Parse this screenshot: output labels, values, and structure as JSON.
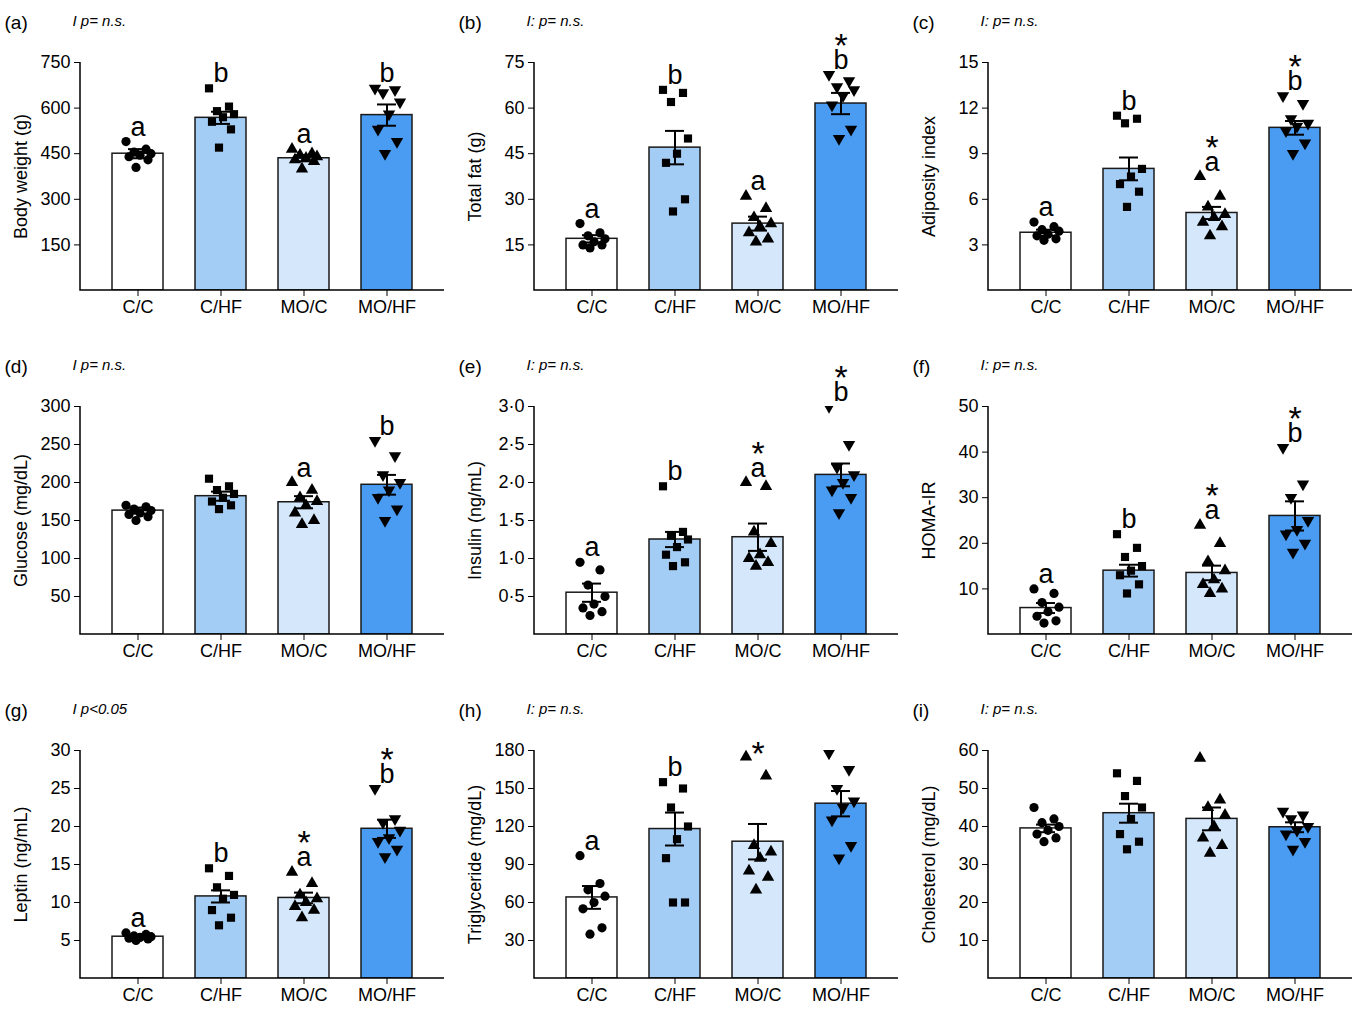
{
  "chart_data": [
    {
      "type": "bar",
      "title": "(a)",
      "annotation": "I p= n.s.",
      "ylabel": "Body weight (g)",
      "categories": [
        "C/C",
        "C/HF",
        "MO/C",
        "MO/HF"
      ],
      "values": [
        450,
        568,
        435,
        577
      ],
      "errors": [
        15,
        20,
        10,
        35
      ],
      "points": [
        [
          490,
          465,
          455,
          450,
          445,
          440,
          430,
          405
        ],
        [
          665,
          605,
          590,
          580,
          570,
          555,
          530,
          470
        ],
        [
          465,
          450,
          445,
          440,
          435,
          430,
          425,
          400
        ],
        [
          665,
          660,
          650,
          620,
          580,
          530,
          490,
          450
        ]
      ],
      "letters": [
        "a",
        "b",
        "a",
        "b"
      ],
      "colors": [
        "#ffffff",
        "#a4cdf6",
        "#d5e7fa",
        "#4a9cf3"
      ],
      "markers": [
        "circle",
        "square",
        "triangle",
        "triangle-down"
      ],
      "ylim": [
        0,
        750
      ],
      "yticks": [
        150,
        300,
        450,
        600,
        750
      ]
    },
    {
      "type": "bar",
      "title": "(b)",
      "annotation": "I: p= n.s.",
      "ylabel": "Total fat (g)",
      "categories": [
        "C/C",
        "C/HF",
        "MO/C",
        "MO/HF"
      ],
      "values": [
        17,
        47,
        22,
        61.5
      ],
      "errors": [
        1.2,
        5.5,
        2.3,
        3.5
      ],
      "points": [
        [
          22,
          19,
          18,
          17,
          16,
          15,
          15,
          14
        ],
        [
          66,
          65,
          62,
          50,
          45,
          42,
          30,
          26
        ],
        [
          31,
          27,
          24,
          22,
          21,
          19,
          17,
          16
        ],
        [
          71,
          69,
          67,
          66,
          64,
          61,
          53,
          50
        ]
      ],
      "letters": [
        "a",
        "b",
        "a",
        "b"
      ],
      "stars": [
        null,
        null,
        null,
        "*"
      ],
      "colors": [
        "#ffffff",
        "#a4cdf6",
        "#d5e7fa",
        "#4a9cf3"
      ],
      "markers": [
        "circle",
        "square",
        "triangle",
        "triangle-down"
      ],
      "ylim": [
        0,
        75
      ],
      "yticks": [
        15,
        30,
        45,
        60,
        75
      ]
    },
    {
      "type": "bar",
      "title": "(c)",
      "annotation": "I: p= n.s.",
      "ylabel": "Adiposity index",
      "categories": [
        "C/C",
        "C/HF",
        "MO/C",
        "MO/HF"
      ],
      "values": [
        3.8,
        8.0,
        5.1,
        10.7
      ],
      "errors": [
        0.2,
        0.75,
        0.4,
        0.45
      ],
      "points": [
        [
          4.5,
          4.2,
          4.0,
          3.9,
          3.7,
          3.6,
          3.4,
          3.3
        ],
        [
          11.5,
          11.3,
          11.0,
          8.0,
          7.5,
          7.0,
          6.5,
          5.5
        ],
        [
          7.5,
          6.2,
          5.5,
          5.0,
          4.8,
          4.5,
          4.2,
          3.6
        ],
        [
          12.8,
          12.3,
          11.3,
          11.0,
          10.8,
          10.5,
          9.7,
          9.0
        ]
      ],
      "letters": [
        "a",
        "b",
        "a",
        "b"
      ],
      "stars": [
        null,
        null,
        "*",
        "*"
      ],
      "colors": [
        "#ffffff",
        "#a4cdf6",
        "#d5e7fa",
        "#4a9cf3"
      ],
      "markers": [
        "circle",
        "square",
        "triangle",
        "triangle-down"
      ],
      "ylim": [
        0,
        15
      ],
      "yticks": [
        3,
        6,
        9,
        12,
        15
      ]
    },
    {
      "type": "bar",
      "title": "(d)",
      "annotation": "I p= n.s.",
      "ylabel": "Glucose (mg/dL)",
      "categories": [
        "C/C",
        "C/HF",
        "MO/C",
        "MO/HF"
      ],
      "values": [
        163,
        182,
        174,
        197
      ],
      "errors": [
        4,
        6,
        8,
        13
      ],
      "points": [
        [
          170,
          168,
          165,
          163,
          160,
          158,
          155,
          150
        ],
        [
          205,
          195,
          190,
          185,
          180,
          175,
          170,
          165
        ],
        [
          200,
          190,
          180,
          175,
          170,
          160,
          150,
          145
        ],
        [
          255,
          235,
          210,
          200,
          190,
          180,
          165,
          150
        ]
      ],
      "letters": [
        null,
        null,
        "a",
        "b"
      ],
      "colors": [
        "#ffffff",
        "#a4cdf6",
        "#d5e7fa",
        "#4a9cf3"
      ],
      "markers": [
        "circle",
        "square",
        "triangle",
        "triangle-down"
      ],
      "ylim": [
        0,
        300
      ],
      "yticks": [
        50,
        100,
        150,
        200,
        250,
        300
      ]
    },
    {
      "type": "bar",
      "title": "(e)",
      "annotation": "I: p= n.s.",
      "ylabel": "Insulin (ng/mL)",
      "categories": [
        "C/C",
        "C/HF",
        "MO/C",
        "MO/HF"
      ],
      "values": [
        0.55,
        1.25,
        1.28,
        2.1
      ],
      "errors": [
        0.12,
        0.1,
        0.18,
        0.15
      ],
      "points": [
        [
          0.95,
          0.85,
          0.65,
          0.5,
          0.4,
          0.35,
          0.3,
          0.25
        ],
        [
          1.95,
          1.35,
          1.3,
          1.25,
          1.15,
          1.05,
          0.95,
          0.9
        ],
        [
          2.0,
          1.95,
          1.35,
          1.2,
          1.05,
          1.0,
          0.95,
          0.9
        ],
        [
          3.0,
          2.5,
          2.2,
          2.1,
          2.0,
          1.9,
          1.8,
          1.6
        ]
      ],
      "letters": [
        "a",
        "b",
        "a",
        "b"
      ],
      "stars": [
        null,
        null,
        "*",
        "*"
      ],
      "colors": [
        "#ffffff",
        "#a4cdf6",
        "#d5e7fa",
        "#4a9cf3"
      ],
      "markers": [
        "circle",
        "square",
        "triangle",
        "triangle-down"
      ],
      "ylim": [
        0,
        3
      ],
      "yticks": [
        {
          "value": 0.5,
          "label": "0·5"
        },
        {
          "value": 1,
          "label": "1·0"
        },
        {
          "value": 1.5,
          "label": "1·5"
        },
        {
          "value": 2,
          "label": "2·0"
        },
        {
          "value": 2.5,
          "label": "2·5"
        },
        {
          "value": 3,
          "label": "3·0"
        }
      ]
    },
    {
      "type": "bar",
      "title": "(f)",
      "annotation": "I: p= n.s.",
      "ylabel": "HOMA-IR",
      "categories": [
        "C/C",
        "C/HF",
        "MO/C",
        "MO/HF"
      ],
      "values": [
        5.8,
        14,
        13.5,
        26
      ],
      "errors": [
        1.1,
        1.3,
        1.6,
        3.2
      ],
      "points": [
        [
          10,
          9,
          7,
          6,
          5,
          4,
          3,
          2.5
        ],
        [
          22,
          19,
          17,
          15,
          14,
          13,
          11,
          9
        ],
        [
          24,
          20,
          16,
          14,
          12,
          11,
          10,
          9
        ],
        [
          41,
          33,
          30,
          25,
          23,
          22,
          20,
          18
        ]
      ],
      "letters": [
        "a",
        "b",
        "a",
        "b"
      ],
      "stars": [
        null,
        null,
        "*",
        "*"
      ],
      "colors": [
        "#ffffff",
        "#a4cdf6",
        "#d5e7fa",
        "#4a9cf3"
      ],
      "markers": [
        "circle",
        "square",
        "triangle",
        "triangle-down"
      ],
      "ylim": [
        0,
        50
      ],
      "yticks": [
        10,
        20,
        30,
        40,
        50
      ]
    },
    {
      "type": "bar",
      "title": "(g)",
      "annotation": "I p<0.05",
      "ylabel": "Leptin (ng/mL)",
      "categories": [
        "C/C",
        "C/HF",
        "MO/C",
        "MO/HF"
      ],
      "values": [
        5.5,
        10.8,
        10.6,
        19.7
      ],
      "errors": [
        0.2,
        0.8,
        0.7,
        1.2
      ],
      "points": [
        [
          6.0,
          5.8,
          5.6,
          5.5,
          5.4,
          5.3,
          5.2,
          5.0
        ],
        [
          14.5,
          13.5,
          12,
          11,
          10.5,
          9,
          8,
          7
        ],
        [
          14,
          12.5,
          11,
          10.5,
          10,
          9.5,
          9,
          8
        ],
        [
          25,
          21,
          20.5,
          19.5,
          18.5,
          18,
          17,
          16
        ]
      ],
      "letters": [
        "a",
        "b",
        "a",
        "b"
      ],
      "stars": [
        null,
        null,
        "*",
        "*"
      ],
      "colors": [
        "#ffffff",
        "#a4cdf6",
        "#d5e7fa",
        "#4a9cf3"
      ],
      "markers": [
        "circle",
        "square",
        "triangle",
        "triangle-down"
      ],
      "ylim": [
        0,
        30
      ],
      "yticks": [
        5,
        10,
        15,
        20,
        25,
        30
      ]
    },
    {
      "type": "bar",
      "title": "(h)",
      "annotation": "I: p= n.s.",
      "ylabel": "Triglyceride (mg/dL)",
      "categories": [
        "C/C",
        "C/HF",
        "MO/C",
        "MO/HF"
      ],
      "values": [
        64,
        118,
        108,
        138
      ],
      "errors": [
        9,
        13,
        14,
        10
      ],
      "points": [
        [
          97,
          75,
          70,
          65,
          60,
          55,
          40,
          35
        ],
        [
          155,
          150,
          135,
          120,
          110,
          95,
          60,
          60
        ],
        [
          175,
          160,
          105,
          100,
          95,
          85,
          80,
          70
        ],
        [
          178,
          165,
          150,
          140,
          135,
          125,
          105,
          95
        ]
      ],
      "letters": [
        "a",
        "b",
        null,
        null
      ],
      "stars": [
        null,
        null,
        "*",
        null
      ],
      "colors": [
        "#ffffff",
        "#a4cdf6",
        "#d5e7fa",
        "#4a9cf3"
      ],
      "markers": [
        "circle",
        "square",
        "triangle",
        "triangle-down"
      ],
      "ylim": [
        0,
        180
      ],
      "yticks": [
        30,
        60,
        90,
        120,
        150,
        180
      ]
    },
    {
      "type": "bar",
      "title": "(i)",
      "annotation": "I: p= n.s.",
      "ylabel": "Cholesterol (mg/dL)",
      "categories": [
        "C/C",
        "C/HF",
        "MO/C",
        "MO/HF"
      ],
      "values": [
        39.5,
        43.5,
        42,
        39.8
      ],
      "errors": [
        1,
        2.5,
        3,
        1.3
      ],
      "points": [
        [
          45,
          42,
          41,
          40,
          39,
          38,
          37,
          36
        ],
        [
          54,
          52,
          48,
          45,
          42,
          38,
          36,
          34
        ],
        [
          58,
          47,
          45,
          43,
          40,
          37,
          35,
          33
        ],
        [
          44,
          43,
          42,
          40,
          39,
          38,
          36,
          34
        ]
      ],
      "colors": [
        "#ffffff",
        "#a4cdf6",
        "#d5e7fa",
        "#4a9cf3"
      ],
      "markers": [
        "circle",
        "square",
        "triangle",
        "triangle-down"
      ],
      "ylim": [
        0,
        60
      ],
      "yticks": [
        10,
        20,
        30,
        40,
        50,
        60
      ]
    }
  ]
}
